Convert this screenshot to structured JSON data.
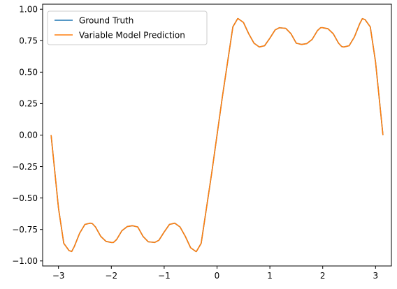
{
  "chart_data": {
    "type": "line",
    "title": "",
    "xlabel": "",
    "ylabel": "",
    "xlim": [
      -3.3,
      3.3
    ],
    "ylim": [
      -1.04,
      1.04
    ],
    "grid": false,
    "legend_position": "top-left",
    "x_ticks": [
      -3,
      -2,
      -1,
      0,
      1,
      2,
      3
    ],
    "x_tick_labels": [
      "−3",
      "−2",
      "−1",
      "0",
      "1",
      "2",
      "3"
    ],
    "y_ticks": [
      1.0,
      0.75,
      0.5,
      0.25,
      0.0,
      -0.25,
      -0.5,
      -0.75,
      -1.0
    ],
    "y_tick_labels": [
      "1.00",
      "0.75",
      "0.50",
      "0.25",
      "0.00",
      "−0.25",
      "−0.50",
      "−0.75",
      "−1.00"
    ],
    "series": [
      {
        "name": "Ground Truth",
        "color": "#1f77b4",
        "x": [
          -3.14,
          -3.0,
          -2.9,
          -2.8,
          -2.75,
          -2.7,
          -2.6,
          -2.5,
          -2.4,
          -2.36,
          -2.3,
          -2.2,
          -2.1,
          -2.0,
          -1.96,
          -1.9,
          -1.8,
          -1.7,
          -1.6,
          -1.57,
          -1.5,
          -1.4,
          -1.3,
          -1.2,
          -1.18,
          -1.1,
          -1.0,
          -0.9,
          -0.8,
          -0.79,
          -0.7,
          -0.6,
          -0.5,
          -0.4,
          -0.39,
          -0.3,
          -0.2,
          -0.1,
          0.0,
          0.1,
          0.2,
          0.3,
          0.39,
          0.4,
          0.5,
          0.6,
          0.7,
          0.79,
          0.8,
          0.9,
          1.0,
          1.1,
          1.18,
          1.2,
          1.3,
          1.4,
          1.5,
          1.57,
          1.6,
          1.7,
          1.8,
          1.9,
          1.96,
          2.0,
          2.1,
          2.2,
          2.3,
          2.36,
          2.4,
          2.5,
          2.6,
          2.7,
          2.75,
          2.8,
          2.9,
          3.0,
          3.14
        ],
        "y": [
          0.0,
          -0.58,
          -0.86,
          -0.918,
          -0.925,
          -0.885,
          -0.78,
          -0.71,
          -0.7,
          -0.703,
          -0.73,
          -0.805,
          -0.845,
          -0.853,
          -0.853,
          -0.83,
          -0.76,
          -0.727,
          -0.72,
          -0.723,
          -0.73,
          -0.805,
          -0.848,
          -0.852,
          -0.853,
          -0.836,
          -0.77,
          -0.71,
          -0.7,
          -0.703,
          -0.73,
          -0.805,
          -0.895,
          -0.925,
          -0.925,
          -0.86,
          -0.58,
          -0.3,
          0.0,
          0.3,
          0.58,
          0.86,
          0.925,
          0.925,
          0.895,
          0.805,
          0.73,
          0.703,
          0.7,
          0.71,
          0.77,
          0.836,
          0.853,
          0.852,
          0.848,
          0.805,
          0.73,
          0.723,
          0.72,
          0.727,
          0.76,
          0.83,
          0.853,
          0.853,
          0.845,
          0.805,
          0.73,
          0.703,
          0.7,
          0.71,
          0.78,
          0.885,
          0.925,
          0.918,
          0.86,
          0.58,
          0.0
        ]
      },
      {
        "name": "Variable Model Prediction",
        "color": "#ff7f0e",
        "x": [
          -3.14,
          -3.0,
          -2.9,
          -2.8,
          -2.75,
          -2.7,
          -2.6,
          -2.5,
          -2.4,
          -2.36,
          -2.3,
          -2.2,
          -2.1,
          -2.0,
          -1.96,
          -1.9,
          -1.8,
          -1.7,
          -1.6,
          -1.57,
          -1.5,
          -1.4,
          -1.3,
          -1.2,
          -1.18,
          -1.1,
          -1.0,
          -0.9,
          -0.8,
          -0.79,
          -0.7,
          -0.6,
          -0.5,
          -0.4,
          -0.39,
          -0.3,
          -0.2,
          -0.1,
          0.0,
          0.1,
          0.2,
          0.3,
          0.39,
          0.4,
          0.5,
          0.6,
          0.7,
          0.79,
          0.8,
          0.9,
          1.0,
          1.1,
          1.18,
          1.2,
          1.3,
          1.4,
          1.5,
          1.57,
          1.6,
          1.7,
          1.8,
          1.9,
          1.96,
          2.0,
          2.1,
          2.2,
          2.3,
          2.36,
          2.4,
          2.5,
          2.6,
          2.7,
          2.75,
          2.8,
          2.9,
          3.0,
          3.14
        ],
        "y": [
          0.0,
          -0.58,
          -0.86,
          -0.918,
          -0.925,
          -0.885,
          -0.78,
          -0.71,
          -0.7,
          -0.703,
          -0.73,
          -0.805,
          -0.845,
          -0.853,
          -0.853,
          -0.83,
          -0.76,
          -0.727,
          -0.72,
          -0.723,
          -0.73,
          -0.805,
          -0.848,
          -0.852,
          -0.853,
          -0.836,
          -0.77,
          -0.71,
          -0.7,
          -0.703,
          -0.73,
          -0.805,
          -0.895,
          -0.925,
          -0.925,
          -0.86,
          -0.58,
          -0.3,
          0.0,
          0.3,
          0.58,
          0.86,
          0.925,
          0.925,
          0.895,
          0.805,
          0.73,
          0.703,
          0.7,
          0.71,
          0.77,
          0.836,
          0.853,
          0.852,
          0.848,
          0.805,
          0.73,
          0.723,
          0.72,
          0.727,
          0.76,
          0.83,
          0.853,
          0.853,
          0.845,
          0.805,
          0.73,
          0.703,
          0.7,
          0.71,
          0.78,
          0.885,
          0.925,
          0.918,
          0.86,
          0.58,
          0.0
        ]
      }
    ]
  }
}
